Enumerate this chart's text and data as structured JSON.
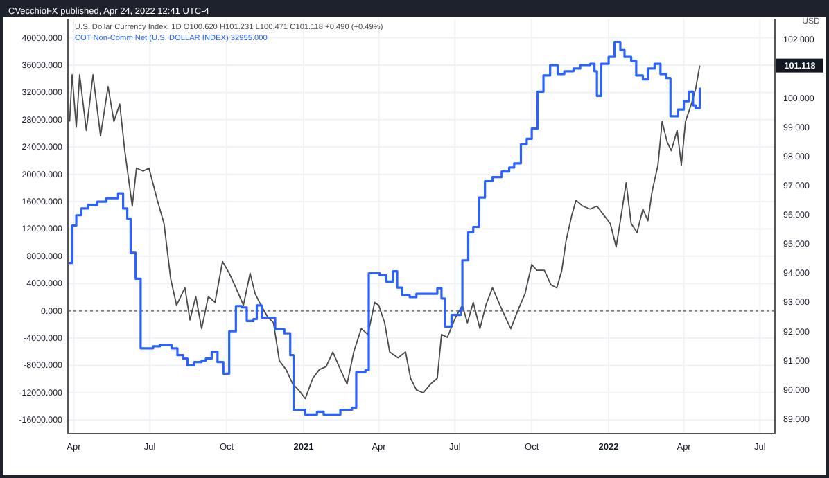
{
  "chart_data": {
    "type": "line",
    "title": "CVecchioFX published, Apr 24, 2022 12:41 UTC-4",
    "y2label": "USD",
    "xlim": [
      "2020-03-25",
      "2022-07-19"
    ],
    "xticks": [
      {
        "value": "2020-04-01",
        "label": "Apr"
      },
      {
        "value": "2020-07-01",
        "label": "Jul"
      },
      {
        "value": "2020-10-01",
        "label": "Oct"
      },
      {
        "value": "2021-01-01",
        "label": "2021"
      },
      {
        "value": "2021-04-01",
        "label": "Apr"
      },
      {
        "value": "2021-07-01",
        "label": "Jul"
      },
      {
        "value": "2021-10-01",
        "label": "Oct"
      },
      {
        "value": "2022-01-01",
        "label": "2022"
      },
      {
        "value": "2022-04-01",
        "label": "Apr"
      },
      {
        "value": "2022-07-01",
        "label": "Jul"
      }
    ],
    "ylim": [
      -18000,
      42700
    ],
    "yticks": [
      {
        "value": -16000,
        "label": "-16000.000"
      },
      {
        "value": -12000,
        "label": "-12000.000"
      },
      {
        "value": -8000,
        "label": "-8000.000"
      },
      {
        "value": -4000,
        "label": "-4000.000"
      },
      {
        "value": 0,
        "label": "0.000"
      },
      {
        "value": 4000,
        "label": "4000.000"
      },
      {
        "value": 8000,
        "label": "8000.000"
      },
      {
        "value": 12000,
        "label": "12000.000"
      },
      {
        "value": 16000,
        "label": "16000.000"
      },
      {
        "value": 20000,
        "label": "20000.000"
      },
      {
        "value": 24000,
        "label": "24000.000"
      },
      {
        "value": 28000,
        "label": "28000.000"
      },
      {
        "value": 32000,
        "label": "32000.000"
      },
      {
        "value": 36000,
        "label": "36000.000"
      },
      {
        "value": 40000,
        "label": "40000.000"
      }
    ],
    "y2lim": [
      88.5,
      102.7
    ],
    "y2ticks": [
      {
        "value": 89,
        "label": "89.000"
      },
      {
        "value": 90,
        "label": "90.000"
      },
      {
        "value": 91,
        "label": "91.000"
      },
      {
        "value": 92,
        "label": "92.000"
      },
      {
        "value": 93,
        "label": "93.000"
      },
      {
        "value": 94,
        "label": "94.000"
      },
      {
        "value": 95,
        "label": "95.000"
      },
      {
        "value": 96,
        "label": "96.000"
      },
      {
        "value": 97,
        "label": "97.000"
      },
      {
        "value": 98,
        "label": "98.000"
      },
      {
        "value": 99,
        "label": "99.000"
      },
      {
        "value": 100,
        "label": "100.000"
      },
      {
        "value": 102,
        "label": "102.000"
      }
    ],
    "grid": true,
    "legend": "top left",
    "ref_lines": [
      {
        "axis": "y",
        "value": 0,
        "color": "#808080",
        "line_style": "dotted"
      }
    ],
    "annotations": [
      "101.118"
    ],
    "series": [
      {
        "name": "U.S. Dollar Currency Index, 1D  O100.620 H101.231 L100.471 C101.118 +0.490 (+0.49%)",
        "type": "line",
        "axis": "y2",
        "color": "#4a4a4a",
        "x": [
          "2020-03-27",
          "2020-03-30",
          "2020-04-04",
          "2020-04-08",
          "2020-04-16",
          "2020-04-24",
          "2020-05-03",
          "2020-05-12",
          "2020-05-19",
          "2020-05-26",
          "2020-06-01",
          "2020-06-10",
          "2020-06-15",
          "2020-06-23",
          "2020-06-30",
          "2020-07-10",
          "2020-07-18",
          "2020-07-26",
          "2020-08-02",
          "2020-08-12",
          "2020-08-18",
          "2020-08-25",
          "2020-09-01",
          "2020-09-09",
          "2020-09-17",
          "2020-09-26",
          "2020-10-04",
          "2020-10-12",
          "2020-10-21",
          "2020-10-29",
          "2020-11-04",
          "2020-11-11",
          "2020-11-19",
          "2020-11-26",
          "2020-12-03",
          "2020-12-11",
          "2020-12-19",
          "2020-12-26",
          "2021-01-03",
          "2021-01-12",
          "2021-01-20",
          "2021-01-28",
          "2021-02-05",
          "2021-02-14",
          "2021-02-22",
          "2021-03-02",
          "2021-03-11",
          "2021-03-19",
          "2021-03-27",
          "2021-04-01",
          "2021-04-08",
          "2021-04-14",
          "2021-04-24",
          "2021-05-03",
          "2021-05-09",
          "2021-05-16",
          "2021-05-24",
          "2021-06-02",
          "2021-06-10",
          "2021-06-15",
          "2021-06-22",
          "2021-07-02",
          "2021-07-10",
          "2021-07-16",
          "2021-07-23",
          "2021-07-31",
          "2021-08-07",
          "2021-08-15",
          "2021-08-24",
          "2021-09-01",
          "2021-09-06",
          "2021-09-14",
          "2021-09-23",
          "2021-10-01",
          "2021-10-07",
          "2021-10-16",
          "2021-10-24",
          "2021-10-31",
          "2021-11-06",
          "2021-11-11",
          "2021-11-18",
          "2021-11-23",
          "2021-12-01",
          "2021-12-10",
          "2021-12-18",
          "2021-12-26",
          "2022-01-03",
          "2022-01-10",
          "2022-01-15",
          "2022-01-22",
          "2022-01-28",
          "2022-02-04",
          "2022-02-11",
          "2022-02-17",
          "2022-02-22",
          "2022-03-01",
          "2022-03-06",
          "2022-03-12",
          "2022-03-17",
          "2022-03-24",
          "2022-03-29",
          "2022-04-03",
          "2022-04-10",
          "2022-04-15",
          "2022-04-20"
        ],
        "values": [
          99.2,
          100.8,
          99.0,
          100.8,
          98.9,
          100.8,
          98.7,
          100.4,
          99.2,
          99.8,
          98.2,
          96.3,
          97.6,
          97.5,
          97.6,
          96.5,
          95.7,
          93.8,
          92.9,
          93.5,
          92.4,
          93.2,
          92.1,
          93.2,
          93.0,
          94.4,
          94.0,
          93.5,
          92.9,
          94.0,
          93.3,
          92.9,
          92.5,
          92.3,
          91.0,
          90.7,
          90.2,
          90.0,
          89.7,
          90.4,
          90.7,
          90.8,
          91.3,
          90.7,
          90.2,
          91.3,
          92.1,
          91.9,
          93.0,
          92.9,
          92.3,
          91.3,
          91.1,
          91.3,
          90.4,
          90.0,
          89.9,
          90.2,
          90.4,
          91.9,
          91.8,
          92.5,
          92.9,
          92.3,
          93.0,
          92.1,
          92.9,
          93.5,
          92.9,
          92.4,
          92.1,
          92.7,
          93.3,
          94.3,
          94.1,
          94.1,
          93.6,
          93.5,
          94.1,
          95.1,
          96.0,
          96.5,
          96.3,
          96.2,
          96.3,
          96.0,
          95.7,
          94.9,
          95.8,
          97.1,
          95.7,
          95.4,
          96.2,
          95.8,
          96.8,
          97.7,
          99.2,
          98.5,
          98.2,
          98.9,
          97.7,
          99.2,
          99.8,
          100.3,
          101.118
        ]
      },
      {
        "name": "COT Non-Comm Net (U.S. DOLLAR INDEX)  32955.000",
        "type": "step",
        "axis": "y",
        "color": "#2962ff",
        "x": [
          "2020-03-26",
          "2020-03-30",
          "2020-04-04",
          "2020-04-10",
          "2020-04-18",
          "2020-04-29",
          "2020-05-10",
          "2020-05-24",
          "2020-05-30",
          "2020-06-04",
          "2020-06-08",
          "2020-06-14",
          "2020-06-20",
          "2020-07-05",
          "2020-07-13",
          "2020-07-27",
          "2020-08-03",
          "2020-08-10",
          "2020-08-15",
          "2020-08-23",
          "2020-09-01",
          "2020-09-06",
          "2020-09-13",
          "2020-09-20",
          "2020-09-27",
          "2020-10-04",
          "2020-10-12",
          "2020-10-19",
          "2020-10-25",
          "2020-11-02",
          "2020-11-06",
          "2020-11-12",
          "2020-11-28",
          "2020-12-09",
          "2020-12-16",
          "2020-12-20",
          "2021-01-03",
          "2021-01-17",
          "2021-01-25",
          "2021-02-14",
          "2021-02-28",
          "2021-03-05",
          "2021-03-16",
          "2021-03-20",
          "2021-04-02",
          "2021-04-10",
          "2021-04-18",
          "2021-04-23",
          "2021-04-29",
          "2021-05-08",
          "2021-05-16",
          "2021-06-10",
          "2021-06-15",
          "2021-06-19",
          "2021-06-27",
          "2021-07-08",
          "2021-07-10",
          "2021-07-17",
          "2021-07-23",
          "2021-07-30",
          "2021-08-06",
          "2021-08-15",
          "2021-08-26",
          "2021-09-04",
          "2021-09-10",
          "2021-09-18",
          "2021-09-25",
          "2021-10-01",
          "2021-10-08",
          "2021-10-15",
          "2021-10-23",
          "2021-11-01",
          "2021-11-09",
          "2021-11-20",
          "2021-11-28",
          "2021-12-10",
          "2021-12-15",
          "2021-12-18",
          "2021-12-23",
          "2022-01-01",
          "2022-01-08",
          "2022-01-15",
          "2022-01-20",
          "2022-01-28",
          "2022-02-03",
          "2022-02-11",
          "2022-02-17",
          "2022-02-25",
          "2022-03-04",
          "2022-03-11",
          "2022-03-16",
          "2022-03-25",
          "2022-04-01",
          "2022-04-07",
          "2022-04-12",
          "2022-04-15",
          "2022-04-20"
        ],
        "values": [
          7000,
          12500,
          14000,
          15000,
          15500,
          16000,
          16500,
          17200,
          15000,
          13500,
          8500,
          4700,
          -5500,
          -5200,
          -5000,
          -5500,
          -6500,
          -7000,
          -8000,
          -7500,
          -7300,
          -7000,
          -6000,
          -7500,
          -9200,
          -3000,
          700,
          500,
          -1500,
          -1200,
          800,
          -1000,
          -2700,
          -3300,
          -6500,
          -14500,
          -15200,
          -14800,
          -15200,
          -14500,
          -14200,
          -9000,
          -8700,
          5500,
          5200,
          4300,
          5800,
          3400,
          2300,
          2000,
          2500,
          3300,
          1800,
          -2300,
          -600,
          200,
          7400,
          11500,
          12300,
          16600,
          19000,
          19600,
          20400,
          21000,
          21600,
          24400,
          25200,
          26700,
          32100,
          34500,
          36000,
          34700,
          35100,
          35500,
          36000,
          36200,
          35100,
          31500,
          36200,
          37200,
          39400,
          38200,
          37200,
          36600,
          34500,
          33900,
          35500,
          36200,
          34700,
          34100,
          28500,
          29500,
          30700,
          32100,
          30100,
          29700,
          32700
        ]
      }
    ]
  }
}
